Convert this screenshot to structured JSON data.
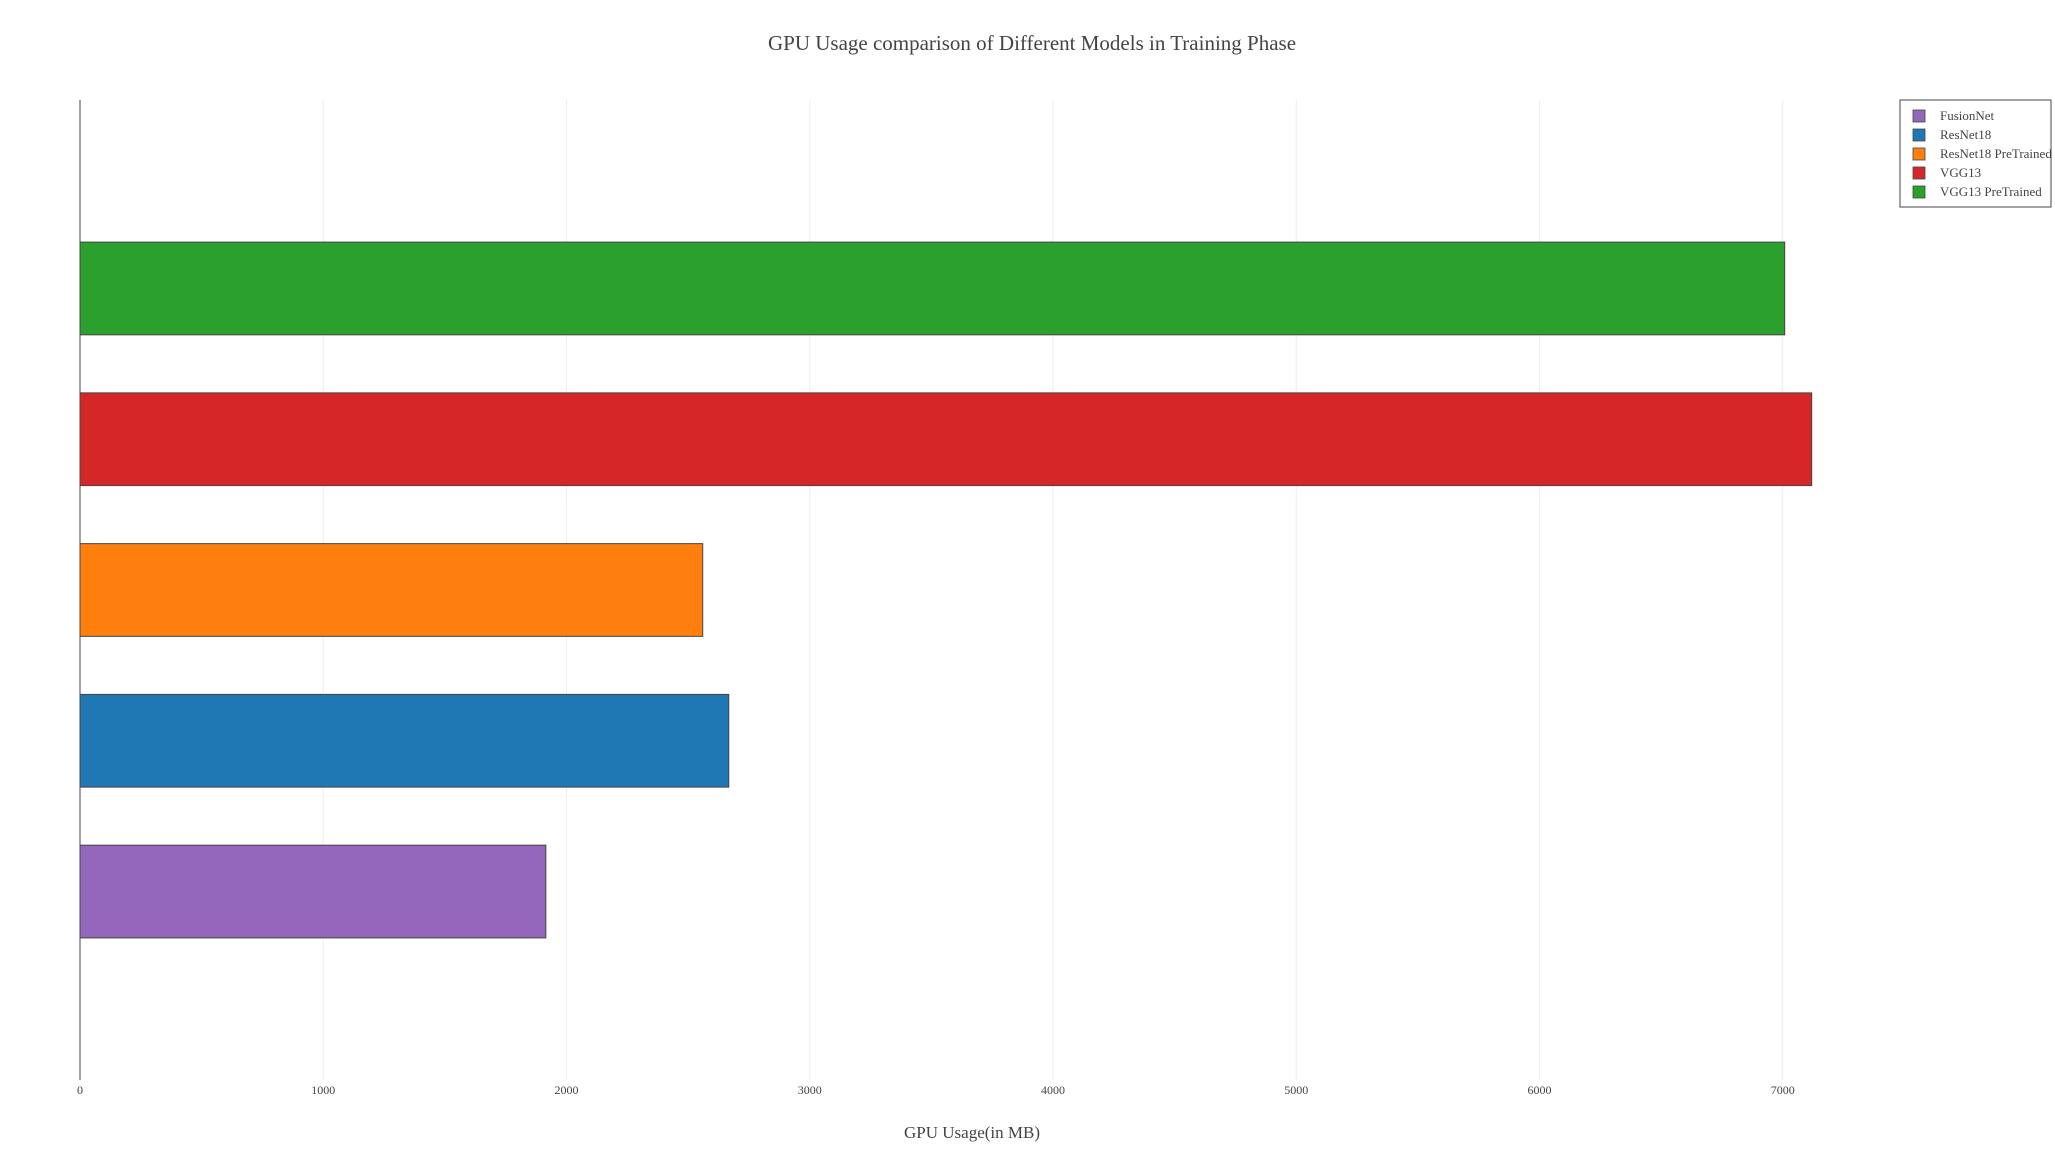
{
  "chart_data": {
    "type": "bar",
    "orientation": "horizontal",
    "title": "GPU Usage comparison of Different Models in Training Phase",
    "xlabel": "GPU Usage(in MB)",
    "ylabel": "",
    "xlim": [
      0,
      8000
    ],
    "xticks": [
      0,
      1000,
      2000,
      3000,
      4000,
      5000,
      6000,
      7000
    ],
    "grid": "vertical",
    "legend_position": "top-right",
    "series": [
      {
        "name": "FusionNet",
        "value": 1915,
        "color": "#9467bd"
      },
      {
        "name": "ResNet18",
        "value": 2667,
        "color": "#1f77b4"
      },
      {
        "name": "ResNet18 PreTrained",
        "value": 2560,
        "color": "#ff7f0e"
      },
      {
        "name": "VGG13",
        "value": 7119,
        "color": "#d62728"
      },
      {
        "name": "VGG13 PreTrained",
        "value": 7008,
        "color": "#2ca02c"
      }
    ]
  }
}
